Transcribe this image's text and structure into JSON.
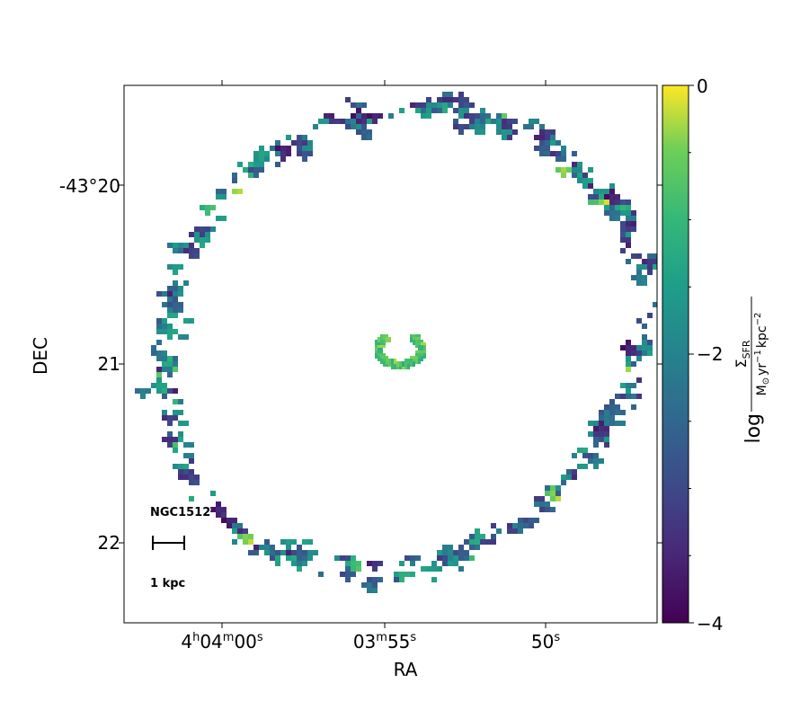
{
  "chart_data": {
    "type": "heatmap",
    "title": "",
    "xlabel": "RA",
    "ylabel": "DEC",
    "x_ticks": [
      {
        "h": "4",
        "hu": "h",
        "m": "04",
        "mu": "m",
        "s": "00",
        "su": "s"
      },
      {
        "h": "",
        "hu": "",
        "m": "03",
        "mu": "m",
        "s": "55",
        "su": "s"
      },
      {
        "h": "",
        "hu": "",
        "m": "",
        "mu": "",
        "s": "50",
        "su": "s"
      }
    ],
    "y_ticks": [
      "-43°20",
      "21",
      "22"
    ],
    "colorbar": {
      "min": -4,
      "max": 0,
      "ticks": [
        "0",
        "−2",
        "−4"
      ],
      "colormap": "viridis",
      "label_log": "log",
      "label_num_sym": "Σ",
      "label_num_sub": "SFR",
      "label_den_a": "M",
      "label_den_odot": "⊙",
      "label_den_b": "yr",
      "label_den_exp1": "−1",
      "label_den_c": "kpc",
      "label_den_exp2": "−2"
    },
    "annotations": {
      "galaxy": "NGC1512",
      "scale_bar": "1 kpc"
    },
    "structure": {
      "description_free": true,
      "components": [
        {
          "name": "nuclear ring",
          "ra_offset_arcsec": 0,
          "dec_offset_arcsec": 0,
          "log_sfr_typical": -0.8
        },
        {
          "name": "outer ring",
          "ra_offset_arcsec": 0,
          "dec_offset_arcsec": 0,
          "log_sfr_typical": -2.2
        }
      ]
    },
    "colors": {
      "viridis_0": "#440154",
      "viridis_25": "#3b528b",
      "viridis_50": "#21918c",
      "viridis_75": "#5ec962",
      "viridis_100": "#fde725"
    }
  }
}
